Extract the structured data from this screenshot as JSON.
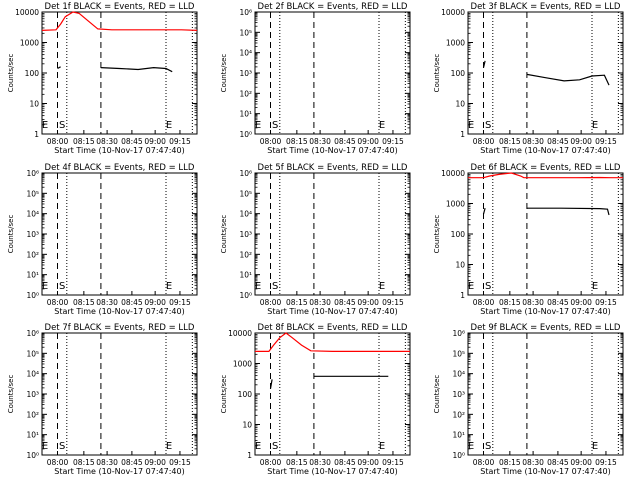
{
  "chart_data": [
    {
      "type": "line",
      "title": "Det 1f BLACK = Events, RED = LLD",
      "ylabel": "Counts/sec",
      "xlabel": "Start Time (10-Nov-17 07:47:40)",
      "yscale": "log",
      "ylim": [
        1,
        10000
      ],
      "ytick_labels": [
        "1",
        "10",
        "100",
        "1000",
        "10000"
      ],
      "xtick_labels": [
        "08:00",
        "08:15",
        "08:30",
        "08:45",
        "09:00",
        "09:15"
      ],
      "markers": [
        "E",
        "S",
        "E"
      ],
      "series": [
        {
          "name": "Events",
          "color": "#000000",
          "segments": [
            [
              [
                0.1,
                140
              ],
              [
                0.12,
                160
              ]
            ],
            [
              [
                0.38,
                150
              ],
              [
                0.5,
                140
              ],
              [
                0.62,
                130
              ],
              [
                0.72,
                150
              ],
              [
                0.8,
                140
              ],
              [
                0.84,
                110
              ]
            ]
          ]
        },
        {
          "name": "LLD",
          "color": "#ff0000",
          "segments": [
            [
              [
                0,
                2500
              ],
              [
                0.09,
                2600
              ],
              [
                0.12,
                4000
              ],
              [
                0.15,
                7000
              ],
              [
                0.2,
                10000
              ],
              [
                0.24,
                9000
              ],
              [
                0.3,
                5000
              ],
              [
                0.36,
                2800
              ],
              [
                0.45,
                2600
              ],
              [
                0.7,
                2600
              ],
              [
                0.9,
                2600
              ],
              [
                1,
                2500
              ]
            ]
          ]
        }
      ]
    },
    {
      "type": "line",
      "title": "Det 2f BLACK = Events, RED = LLD",
      "ylabel": "Counts/sec",
      "xlabel": "Start Time (10-Nov-17 07:47:40)",
      "yscale": "log",
      "ylim": [
        1,
        1000000
      ],
      "ytick_labels": [
        "10⁰",
        "10¹",
        "10²",
        "10³",
        "10⁴",
        "10⁵",
        "10⁶"
      ],
      "xtick_labels": [
        "08:00",
        "08:15",
        "08:30",
        "08:45",
        "09:00",
        "09:15"
      ],
      "markers": [
        "E",
        "S",
        "E"
      ],
      "series": []
    },
    {
      "type": "line",
      "title": "Det 3f BLACK = Events, RED = LLD",
      "ylabel": "Counts/sec",
      "xlabel": "Start Time (10-Nov-17 07:47:40)",
      "yscale": "log",
      "ylim": [
        1,
        10000
      ],
      "ytick_labels": [
        "1",
        "10",
        "100",
        "1000",
        "10000"
      ],
      "xtick_labels": [
        "08:00",
        "08:15",
        "08:30",
        "08:45",
        "09:00",
        "09:15"
      ],
      "markers": [
        "E",
        "S",
        "E"
      ],
      "series": [
        {
          "name": "Events",
          "color": "#000000",
          "segments": [
            [
              [
                0.1,
                150
              ],
              [
                0.11,
                250
              ]
            ],
            [
              [
                0.38,
                90
              ],
              [
                0.5,
                70
              ],
              [
                0.62,
                55
              ],
              [
                0.72,
                60
              ],
              [
                0.8,
                80
              ],
              [
                0.88,
                85
              ],
              [
                0.91,
                40
              ]
            ]
          ]
        }
      ]
    },
    {
      "type": "line",
      "title": "Det 4f BLACK = Events, RED = LLD",
      "ylabel": "Counts/sec",
      "xlabel": "Start Time (10-Nov-17 07:47:40)",
      "yscale": "log",
      "ylim": [
        1,
        1000000
      ],
      "ytick_labels": [
        "10⁰",
        "10¹",
        "10²",
        "10³",
        "10⁴",
        "10⁵",
        "10⁶"
      ],
      "xtick_labels": [
        "08:00",
        "08:15",
        "08:30",
        "08:45",
        "09:00",
        "09:15"
      ],
      "markers": [
        "E",
        "S",
        "E"
      ],
      "series": []
    },
    {
      "type": "line",
      "title": "Det 5f BLACK = Events, RED = LLD",
      "ylabel": "Counts/sec",
      "xlabel": "Start Time (10-Nov-17 07:47:40)",
      "yscale": "log",
      "ylim": [
        1,
        1000000
      ],
      "ytick_labels": [
        "10⁰",
        "10¹",
        "10²",
        "10³",
        "10⁴",
        "10⁵",
        "10⁶"
      ],
      "xtick_labels": [
        "08:00",
        "08:15",
        "08:30",
        "08:45",
        "09:00",
        "09:15"
      ],
      "markers": [
        "E",
        "S",
        "E"
      ],
      "series": []
    },
    {
      "type": "line",
      "title": "Det 6f BLACK = Events, RED = LLD",
      "ylabel": "Counts/sec",
      "xlabel": "Start Time (10-Nov-17 07:47:40)",
      "yscale": "log",
      "ylim": [
        1,
        10000
      ],
      "ytick_labels": [
        "1",
        "10",
        "100",
        "1000",
        "10000"
      ],
      "xtick_labels": [
        "08:00",
        "08:15",
        "08:30",
        "08:45",
        "09:00",
        "09:15"
      ],
      "markers": [
        "E",
        "S",
        "E"
      ],
      "series": [
        {
          "name": "Events",
          "color": "#000000",
          "segments": [
            [
              [
                0.1,
                450
              ],
              [
                0.11,
                700
              ]
            ],
            [
              [
                0.38,
                700
              ],
              [
                0.6,
                700
              ],
              [
                0.85,
                680
              ],
              [
                0.9,
                650
              ],
              [
                0.91,
                420
              ]
            ]
          ]
        },
        {
          "name": "LLD",
          "color": "#ff0000",
          "segments": [
            [
              [
                0,
                7000
              ],
              [
                0.1,
                7000
              ],
              [
                0.14,
                8000
              ],
              [
                0.2,
                9000
              ],
              [
                0.28,
                10000
              ],
              [
                0.34,
                8000
              ],
              [
                0.36,
                7000
              ],
              [
                0.5,
                7000
              ],
              [
                0.7,
                7000
              ],
              [
                0.85,
                7100
              ],
              [
                0.92,
                7000
              ],
              [
                1,
                7000
              ]
            ]
          ]
        }
      ]
    },
    {
      "type": "line",
      "title": "Det 7f BLACK = Events, RED = LLD",
      "ylabel": "Counts/sec",
      "xlabel": "Start Time (10-Nov-17 07:47:40)",
      "yscale": "log",
      "ylim": [
        1,
        1000000
      ],
      "ytick_labels": [
        "10⁰",
        "10¹",
        "10²",
        "10³",
        "10⁴",
        "10⁵",
        "10⁶"
      ],
      "xtick_labels": [
        "08:00",
        "08:15",
        "08:30",
        "08:45",
        "09:00",
        "09:15"
      ],
      "markers": [
        "E",
        "S",
        "E"
      ],
      "series": []
    },
    {
      "type": "line",
      "title": "Det 8f BLACK = Events, RED = LLD",
      "ylabel": "Counts/sec",
      "xlabel": "Start Time (10-Nov-17 07:47:40)",
      "yscale": "log",
      "ylim": [
        1,
        10000
      ],
      "ytick_labels": [
        "1",
        "10",
        "100",
        "1000",
        "10000"
      ],
      "xtick_labels": [
        "08:00",
        "08:15",
        "08:30",
        "08:45",
        "09:00",
        "09:15"
      ],
      "markers": [
        "E",
        "S",
        "E"
      ],
      "series": [
        {
          "name": "Events",
          "color": "#000000",
          "segments": [
            [
              [
                0.1,
                150
              ],
              [
                0.11,
                300
              ]
            ],
            [
              [
                0.38,
                380
              ],
              [
                0.6,
                380
              ],
              [
                0.86,
                380
              ]
            ]
          ]
        },
        {
          "name": "LLD",
          "color": "#ff0000",
          "segments": [
            [
              [
                0,
                2500
              ],
              [
                0.09,
                2500
              ],
              [
                0.12,
                4000
              ],
              [
                0.16,
                7000
              ],
              [
                0.2,
                10000
              ],
              [
                0.24,
                7000
              ],
              [
                0.3,
                4000
              ],
              [
                0.36,
                2600
              ],
              [
                0.5,
                2500
              ],
              [
                0.8,
                2500
              ],
              [
                1,
                2500
              ]
            ]
          ]
        }
      ]
    },
    {
      "type": "line",
      "title": "Det 9f BLACK = Events, RED = LLD",
      "ylabel": "Counts/sec",
      "xlabel": "Start Time (10-Nov-17 07:47:40)",
      "yscale": "log",
      "ylim": [
        1,
        1000000
      ],
      "ytick_labels": [
        "10⁰",
        "10¹",
        "10²",
        "10³",
        "10⁴",
        "10⁵",
        "10⁶"
      ],
      "xtick_labels": [
        "08:00",
        "08:15",
        "08:30",
        "08:45",
        "09:00",
        "09:15"
      ],
      "markers": [
        "E",
        "S",
        "E"
      ],
      "series": []
    }
  ]
}
